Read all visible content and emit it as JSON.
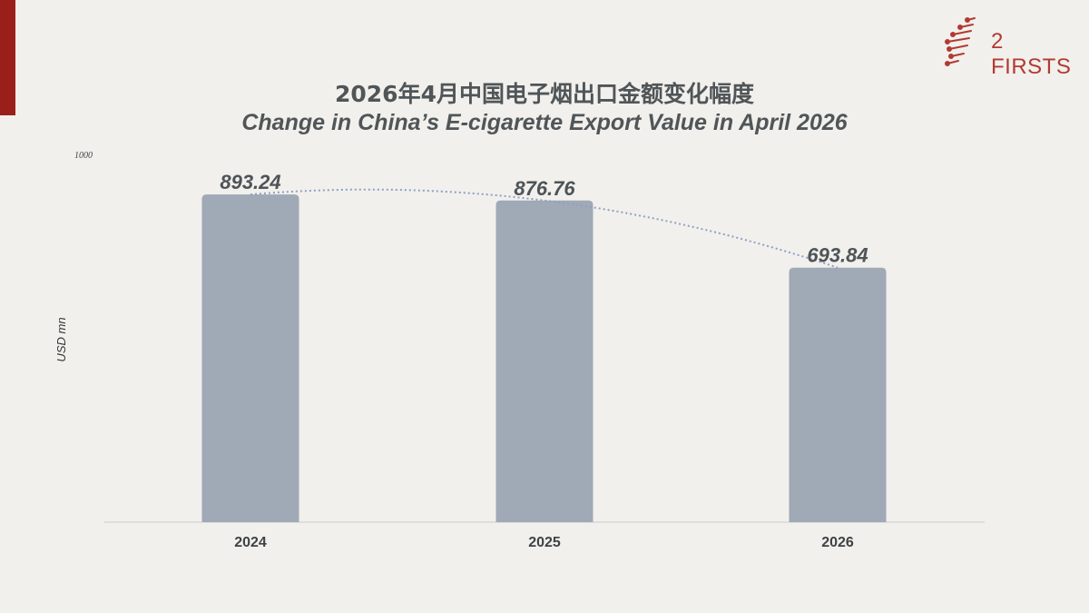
{
  "header": {
    "title_cn": "2026年4月中国电子烟出口金额变化幅度",
    "title_en": "Change in China’s E-cigarette Export Value in April 2026",
    "logo_text": "2 FIRSTS"
  },
  "colors": {
    "accent": "#9a1f1a",
    "bar": "#a0a9b6",
    "trend": "#8f9fc4",
    "logo": "#b23a32"
  },
  "chart_data": {
    "type": "bar",
    "categories": [
      "2024",
      "2025",
      "2026"
    ],
    "values": [
      893.24,
      876.76,
      693.84
    ],
    "value_labels": [
      "893.24",
      "876.76",
      "693.84"
    ],
    "ylabel": "USD mn",
    "ymax_label": "1000",
    "ylim": [
      0,
      1000
    ],
    "grid": false,
    "trendline": "dotted polynomial"
  }
}
